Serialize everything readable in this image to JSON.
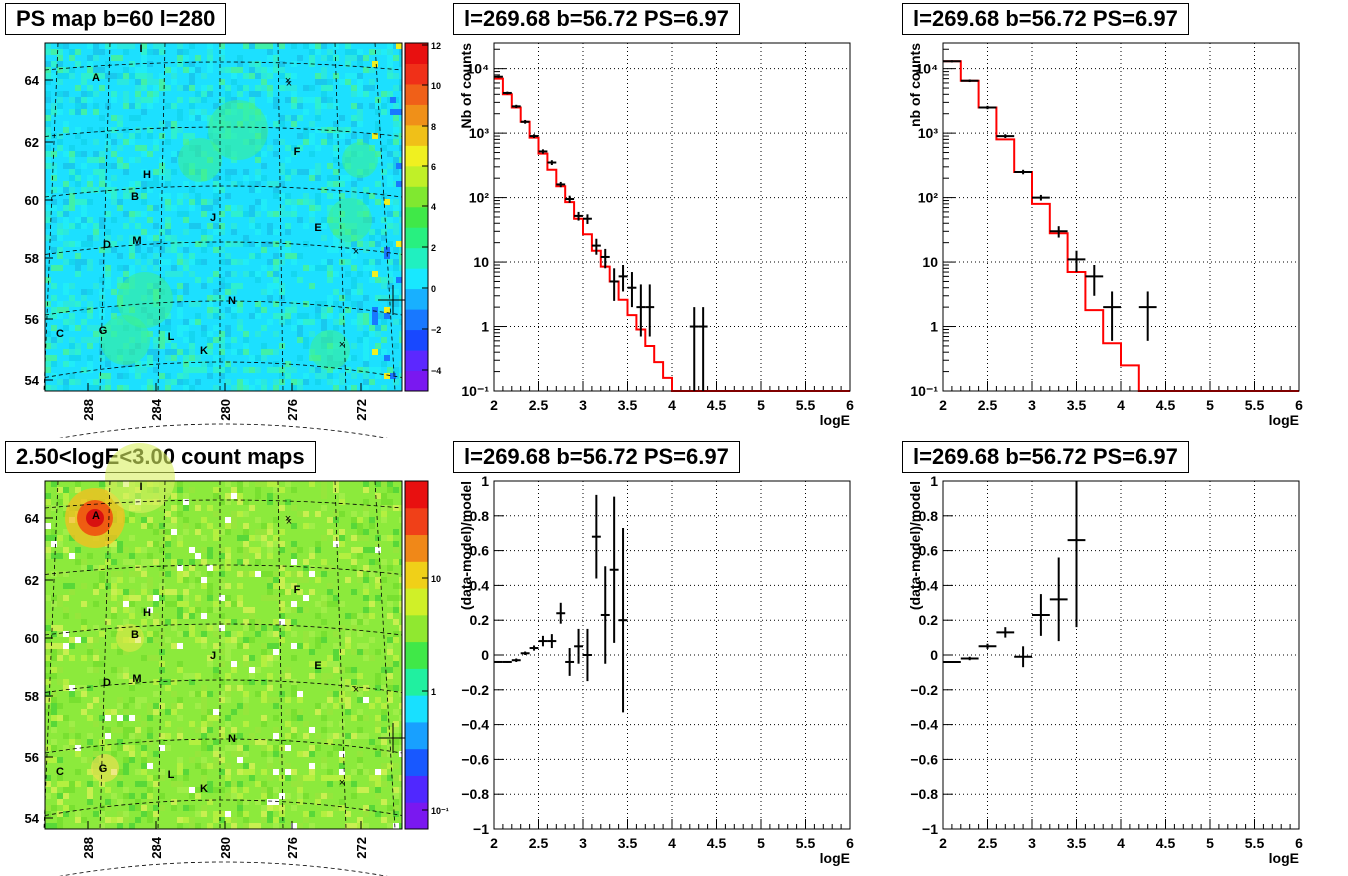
{
  "panels": {
    "map1": {
      "title": "PS map b=60 l=280",
      "colorbar_ticks": [
        "12",
        "10",
        "8",
        "6",
        "4",
        "2",
        "0",
        "−2",
        "−4"
      ],
      "y_ticks": [
        "64",
        "62",
        "60",
        "58",
        "56",
        "54"
      ],
      "x_ticks": [
        "288",
        "284",
        "280",
        "276",
        "272"
      ]
    },
    "map2": {
      "title": "2.50<logE<3.00 count maps",
      "colorbar_ticks": [
        "10",
        "1",
        "10⁻¹"
      ],
      "y_ticks": [
        "64",
        "62",
        "60",
        "58",
        "56",
        "54"
      ],
      "x_ticks": [
        "288",
        "284",
        "280",
        "276",
        "272"
      ]
    },
    "spec1": {
      "title": "l=269.68 b=56.72 PS=6.97"
    },
    "spec2": {
      "title": "l=269.68 b=56.72 PS=6.97"
    },
    "ratio1": {
      "title": "l=269.68 b=56.72 PS=6.97"
    },
    "ratio2": {
      "title": "l=269.68 b=56.72 PS=6.97"
    }
  },
  "source_labels": [
    "A",
    "B",
    "C",
    "D",
    "E",
    "F",
    "G",
    "H",
    "I",
    "J",
    "K",
    "L",
    "M",
    "N"
  ],
  "chart_data": [
    {
      "id": "spec1",
      "type": "line",
      "xlabel": "logE",
      "ylabel": "Nb of counts",
      "xlim": [
        2,
        6
      ],
      "ylim": [
        0.1,
        25000
      ],
      "ylog": true,
      "grid": true,
      "x_ticks": [
        "2",
        "2.5",
        "3",
        "3.5",
        "4",
        "4.5",
        "5",
        "5.5",
        "6"
      ],
      "y_ticks": [
        "10⁻¹",
        "1",
        "10",
        "10²",
        "10³",
        "10⁴"
      ],
      "model_step": {
        "edges": [
          2,
          2.1,
          2.2,
          2.3,
          2.4,
          2.5,
          2.6,
          2.7,
          2.8,
          2.9,
          3.0,
          3.1,
          3.2,
          3.3,
          3.4,
          3.5,
          3.6,
          3.7,
          3.8,
          3.9,
          4.0,
          4.1,
          4.2,
          6.0
        ],
        "values": [
          7000,
          4000,
          2500,
          1500,
          850,
          480,
          270,
          150,
          85,
          47,
          27,
          15,
          8.5,
          5,
          2.6,
          1.5,
          0.9,
          0.5,
          0.28,
          0.16,
          0.09,
          0.05,
          0.03
        ]
      },
      "points": [
        {
          "x": 2.05,
          "y": 7500,
          "ex": 0.05,
          "ey_lo": 300,
          "ey_hi": 300
        },
        {
          "x": 2.15,
          "y": 4200,
          "ex": 0.05,
          "ey_lo": 200,
          "ey_hi": 200
        },
        {
          "x": 2.25,
          "y": 2600,
          "ex": 0.05,
          "ey_lo": 150,
          "ey_hi": 150
        },
        {
          "x": 2.35,
          "y": 1500,
          "ex": 0.05,
          "ey_lo": 100,
          "ey_hi": 100
        },
        {
          "x": 2.45,
          "y": 900,
          "ex": 0.05,
          "ey_lo": 60,
          "ey_hi": 60
        },
        {
          "x": 2.55,
          "y": 520,
          "ex": 0.05,
          "ey_lo": 40,
          "ey_hi": 40
        },
        {
          "x": 2.65,
          "y": 350,
          "ex": 0.05,
          "ey_lo": 30,
          "ey_hi": 30
        },
        {
          "x": 2.75,
          "y": 160,
          "ex": 0.05,
          "ey_lo": 15,
          "ey_hi": 15
        },
        {
          "x": 2.85,
          "y": 95,
          "ex": 0.05,
          "ey_lo": 12,
          "ey_hi": 12
        },
        {
          "x": 2.95,
          "y": 52,
          "ex": 0.05,
          "ey_lo": 8,
          "ey_hi": 8
        },
        {
          "x": 3.05,
          "y": 47,
          "ex": 0.05,
          "ey_lo": 8,
          "ey_hi": 8
        },
        {
          "x": 3.15,
          "y": 18,
          "ex": 0.05,
          "ey_lo": 5,
          "ey_hi": 5
        },
        {
          "x": 3.25,
          "y": 12,
          "ex": 0.05,
          "ey_lo": 4,
          "ey_hi": 4
        },
        {
          "x": 3.35,
          "y": 5,
          "ex": 0.05,
          "ey_lo": 2.5,
          "ey_hi": 3
        },
        {
          "x": 3.45,
          "y": 6,
          "ex": 0.05,
          "ey_lo": 2.5,
          "ey_hi": 3
        },
        {
          "x": 3.55,
          "y": 4,
          "ex": 0.05,
          "ey_lo": 2,
          "ey_hi": 3
        },
        {
          "x": 3.65,
          "y": 2,
          "ex": 0.05,
          "ey_lo": 1.3,
          "ey_hi": 2.5
        },
        {
          "x": 3.75,
          "y": 2,
          "ex": 0.05,
          "ey_lo": 1.3,
          "ey_hi": 2.5
        },
        {
          "x": 4.25,
          "y": 1,
          "ex": 0.05,
          "ey_lo": 0.9,
          "ey_hi": 1
        },
        {
          "x": 4.35,
          "y": 1,
          "ex": 0.05,
          "ey_lo": 0.9,
          "ey_hi": 1
        }
      ]
    },
    {
      "id": "spec2",
      "type": "line",
      "xlabel": "logE",
      "ylabel": "nb of counts",
      "xlim": [
        2,
        6
      ],
      "ylim": [
        0.1,
        25000
      ],
      "ylog": true,
      "grid": true,
      "x_ticks": [
        "2",
        "2.5",
        "3",
        "3.5",
        "4",
        "4.5",
        "5",
        "5.5",
        "6"
      ],
      "y_ticks": [
        "10⁻¹",
        "1",
        "10",
        "10²",
        "10³",
        "10⁴"
      ],
      "model_step": {
        "edges": [
          2,
          2.2,
          2.4,
          2.6,
          2.8,
          3.0,
          3.2,
          3.4,
          3.6,
          3.8,
          4.0,
          4.2,
          6.0
        ],
        "values": [
          13000,
          6500,
          2500,
          800,
          250,
          80,
          28,
          7,
          1.8,
          0.55,
          0.25,
          0.1
        ]
      },
      "points": [
        {
          "x": 2.1,
          "y": 13000,
          "ex": 0.1,
          "ey_lo": 500,
          "ey_hi": 500
        },
        {
          "x": 2.3,
          "y": 6500,
          "ex": 0.1,
          "ey_lo": 300,
          "ey_hi": 300
        },
        {
          "x": 2.5,
          "y": 2500,
          "ex": 0.1,
          "ey_lo": 150,
          "ey_hi": 150
        },
        {
          "x": 2.7,
          "y": 900,
          "ex": 0.1,
          "ey_lo": 60,
          "ey_hi": 60
        },
        {
          "x": 2.9,
          "y": 250,
          "ex": 0.1,
          "ey_lo": 20,
          "ey_hi": 20
        },
        {
          "x": 3.1,
          "y": 100,
          "ex": 0.1,
          "ey_lo": 10,
          "ey_hi": 10
        },
        {
          "x": 3.3,
          "y": 30,
          "ex": 0.1,
          "ey_lo": 6,
          "ey_hi": 6
        },
        {
          "x": 3.5,
          "y": 11,
          "ex": 0.1,
          "ey_lo": 4,
          "ey_hi": 4
        },
        {
          "x": 3.7,
          "y": 6,
          "ex": 0.1,
          "ey_lo": 3,
          "ey_hi": 3
        },
        {
          "x": 3.9,
          "y": 2,
          "ex": 0.1,
          "ey_lo": 1.4,
          "ey_hi": 1.5
        },
        {
          "x": 4.3,
          "y": 2,
          "ex": 0.1,
          "ey_lo": 1.4,
          "ey_hi": 1.5
        }
      ]
    },
    {
      "id": "ratio1",
      "type": "scatter",
      "xlabel": "logE",
      "ylabel": "(data-model)/model",
      "xlim": [
        2,
        6
      ],
      "ylim": [
        -1,
        1
      ],
      "grid": true,
      "x_ticks": [
        "2",
        "2.5",
        "3",
        "3.5",
        "4",
        "4.5",
        "5",
        "5.5",
        "6"
      ],
      "y_ticks": [
        "−1",
        "−0.8",
        "−0.6",
        "−0.4",
        "−0.2",
        "0",
        "0.2",
        "0.4",
        "0.6",
        "0.8",
        "1"
      ],
      "points": [
        {
          "x": 2.05,
          "y": -0.04,
          "ex": 0.05,
          "ey": 0.005
        },
        {
          "x": 2.15,
          "y": -0.04,
          "ex": 0.05,
          "ey": 0.005
        },
        {
          "x": 2.25,
          "y": -0.03,
          "ex": 0.05,
          "ey": 0.01
        },
        {
          "x": 2.35,
          "y": 0.01,
          "ex": 0.05,
          "ey": 0.01
        },
        {
          "x": 2.45,
          "y": 0.04,
          "ex": 0.05,
          "ey": 0.015
        },
        {
          "x": 2.55,
          "y": 0.08,
          "ex": 0.05,
          "ey": 0.03
        },
        {
          "x": 2.65,
          "y": 0.08,
          "ex": 0.05,
          "ey": 0.04
        },
        {
          "x": 2.75,
          "y": 0.24,
          "ex": 0.05,
          "ey": 0.06
        },
        {
          "x": 2.85,
          "y": -0.04,
          "ex": 0.05,
          "ey": 0.08
        },
        {
          "x": 2.95,
          "y": 0.05,
          "ex": 0.05,
          "ey": 0.1
        },
        {
          "x": 3.05,
          "y": 0.0,
          "ex": 0.05,
          "ey": 0.15
        },
        {
          "x": 3.15,
          "y": 0.68,
          "ex": 0.05,
          "ey": 0.24
        },
        {
          "x": 3.25,
          "y": 0.23,
          "ex": 0.05,
          "ey": 0.28
        },
        {
          "x": 3.35,
          "y": 0.49,
          "ex": 0.05,
          "ey": 0.42
        },
        {
          "x": 3.45,
          "y": 0.2,
          "ex": 0.05,
          "ey": 0.53
        }
      ]
    },
    {
      "id": "ratio2",
      "type": "scatter",
      "xlabel": "logE",
      "ylabel": "(data-model)/model",
      "xlim": [
        2,
        6
      ],
      "ylim": [
        -1,
        1
      ],
      "grid": true,
      "x_ticks": [
        "2",
        "2.5",
        "3",
        "3.5",
        "4",
        "4.5",
        "5",
        "5.5",
        "6"
      ],
      "y_ticks": [
        "−1",
        "−0.8",
        "−0.6",
        "−0.4",
        "−0.2",
        "0",
        "0.2",
        "0.4",
        "0.6",
        "0.8",
        "1"
      ],
      "points": [
        {
          "x": 2.1,
          "y": -0.04,
          "ex": 0.1,
          "ey": 0.005
        },
        {
          "x": 2.3,
          "y": -0.02,
          "ex": 0.1,
          "ey": 0.01
        },
        {
          "x": 2.5,
          "y": 0.05,
          "ex": 0.1,
          "ey": 0.015
        },
        {
          "x": 2.7,
          "y": 0.13,
          "ex": 0.1,
          "ey": 0.03
        },
        {
          "x": 2.9,
          "y": -0.01,
          "ex": 0.1,
          "ey": 0.06
        },
        {
          "x": 3.1,
          "y": 0.23,
          "ex": 0.1,
          "ey": 0.12
        },
        {
          "x": 3.3,
          "y": 0.32,
          "ex": 0.1,
          "ey": 0.24
        },
        {
          "x": 3.5,
          "y": 0.66,
          "ex": 0.1,
          "ey": 0.5
        }
      ]
    }
  ]
}
